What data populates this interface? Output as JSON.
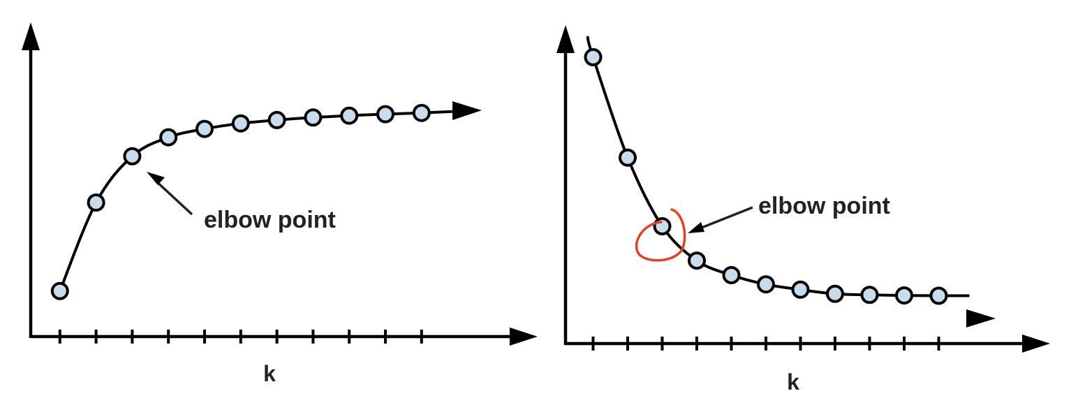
{
  "chart_data": [
    {
      "type": "line",
      "xlabel": "k",
      "ylabel": "",
      "x": [
        1,
        2,
        3,
        4,
        5,
        6,
        7,
        8,
        9,
        10,
        11
      ],
      "series": [
        {
          "values": [
            0.16,
            0.58,
            0.8,
            0.89,
            0.93,
            0.956,
            0.972,
            0.984,
            0.993,
            1.0,
            1.006
          ]
        }
      ],
      "xlim": [
        0,
        13.5
      ],
      "ylim": [
        0,
        1.3
      ],
      "annotation": {
        "text": "elbow point",
        "target_index": 2
      },
      "grid": false
    },
    {
      "type": "line",
      "xlabel": "k",
      "ylabel": "",
      "x": [
        1,
        2,
        3,
        4,
        5,
        6,
        7,
        8,
        9,
        10,
        11
      ],
      "series": [
        {
          "values": [
            1.0,
            0.62,
            0.36,
            0.23,
            0.175,
            0.14,
            0.12,
            0.104,
            0.1,
            0.098,
            0.097
          ]
        }
      ],
      "xlim": [
        0,
        13.5
      ],
      "ylim": [
        -0.1,
        1.05
      ],
      "annotation": {
        "text": "elbow point",
        "target_index": 2,
        "highlight_color": "#e8401f"
      },
      "grid": false
    }
  ]
}
